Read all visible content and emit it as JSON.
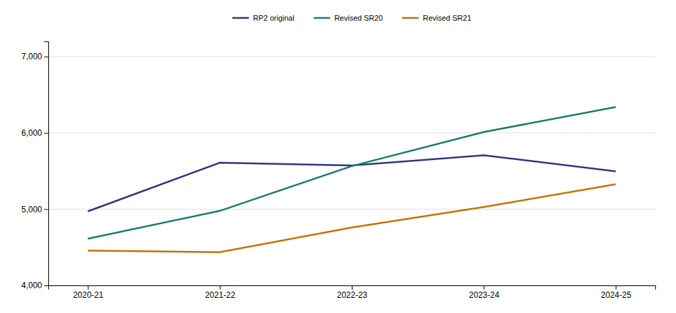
{
  "chart_data": {
    "type": "line",
    "categories": [
      "2020-21",
      "2021-22",
      "2022-23",
      "2023-24",
      "2024-25"
    ],
    "series": [
      {
        "name": "RP2 original",
        "color": "#2E3583",
        "values": [
          4972,
          5609,
          5573,
          5706,
          5497
        ]
      },
      {
        "name": "Revised SR20",
        "color": "#1A7A6E",
        "values": [
          4612,
          4978,
          5565,
          6011,
          6339
        ]
      },
      {
        "name": "Revised SR21",
        "color": "#C87000",
        "values": [
          4457,
          4437,
          4760,
          5028,
          5327
        ]
      }
    ],
    "ylim": [
      4000,
      7200
    ],
    "yticks": [
      {
        "value": 4000,
        "label": "4,000"
      },
      {
        "value": 5000,
        "label": "5,000"
      },
      {
        "value": 6000,
        "label": "6,000"
      },
      {
        "value": 7000,
        "label": "7,000"
      }
    ],
    "grid": true,
    "legend": "top"
  }
}
